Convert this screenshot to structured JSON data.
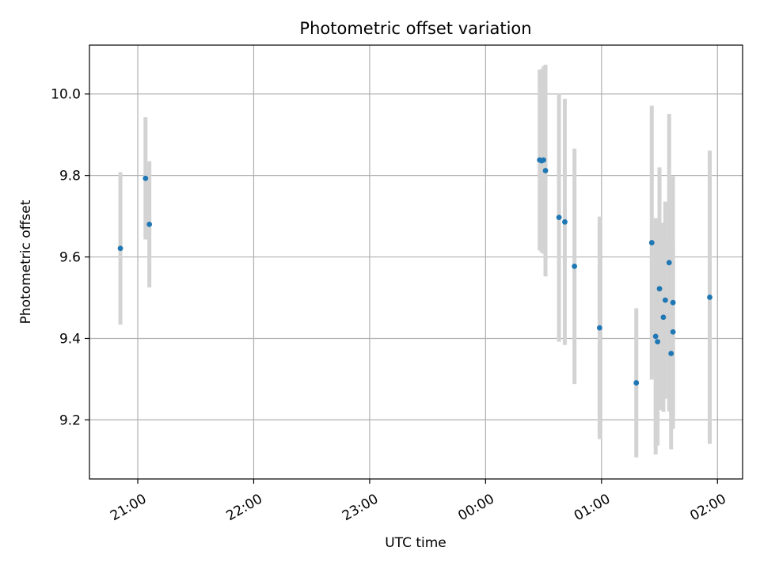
{
  "chart_data": {
    "type": "scatter",
    "title": "Photometric offset variation",
    "xlabel": "UTC time",
    "ylabel": "Photometric offset",
    "grid": true,
    "x_ticks": [
      {
        "time": "21:00",
        "label": "21:00"
      },
      {
        "time": "22:00",
        "label": "22:00"
      },
      {
        "time": "23:00",
        "label": "23:00"
      },
      {
        "time": "00:00",
        "label": "00:00"
      },
      {
        "time": "01:00",
        "label": "01:00"
      },
      {
        "time": "02:00",
        "label": "02:00"
      }
    ],
    "y_ticks": [
      9.2,
      9.4,
      9.6,
      9.8,
      10.0
    ],
    "xlim": [
      "20:35",
      "02:13"
    ],
    "ylim": [
      9.055,
      10.12
    ],
    "colors": {
      "point": "#1f77b4",
      "error_bar": "#d3d3d3"
    },
    "points": [
      {
        "x": "20:51",
        "y": 9.621,
        "err": 0.187
      },
      {
        "x": "21:04",
        "y": 9.793,
        "err": 0.15
      },
      {
        "x": "21:06",
        "y": 9.68,
        "err": 0.155
      },
      {
        "x": "00:28",
        "y": 9.838,
        "err": 0.222
      },
      {
        "x": "00:29",
        "y": 9.836,
        "err": 0.225
      },
      {
        "x": "00:30",
        "y": 9.838,
        "err": 0.23
      },
      {
        "x": "00:31",
        "y": 9.812,
        "err": 0.26
      },
      {
        "x": "00:38",
        "y": 9.697,
        "err": 0.305
      },
      {
        "x": "00:41",
        "y": 9.686,
        "err": 0.302
      },
      {
        "x": "00:46",
        "y": 9.577,
        "err": 0.289
      },
      {
        "x": "00:59",
        "y": 9.426,
        "err": 0.273
      },
      {
        "x": "01:18",
        "y": 9.291,
        "err": 0.183
      },
      {
        "x": "01:26",
        "y": 9.635,
        "err": 0.336
      },
      {
        "x": "01:28",
        "y": 9.405,
        "err": 0.29
      },
      {
        "x": "01:29",
        "y": 9.392,
        "err": 0.255
      },
      {
        "x": "01:30",
        "y": 9.522,
        "err": 0.298
      },
      {
        "x": "01:32",
        "y": 9.452,
        "err": 0.232
      },
      {
        "x": "01:33",
        "y": 9.494,
        "err": 0.242
      },
      {
        "x": "01:35",
        "y": 9.586,
        "err": 0.365
      },
      {
        "x": "01:36",
        "y": 9.363,
        "err": 0.235
      },
      {
        "x": "01:37",
        "y": 9.416,
        "err": 0.22
      },
      {
        "x": "01:37",
        "y": 9.488,
        "err": 0.31
      },
      {
        "x": "01:56",
        "y": 9.501,
        "err": 0.36
      }
    ]
  }
}
